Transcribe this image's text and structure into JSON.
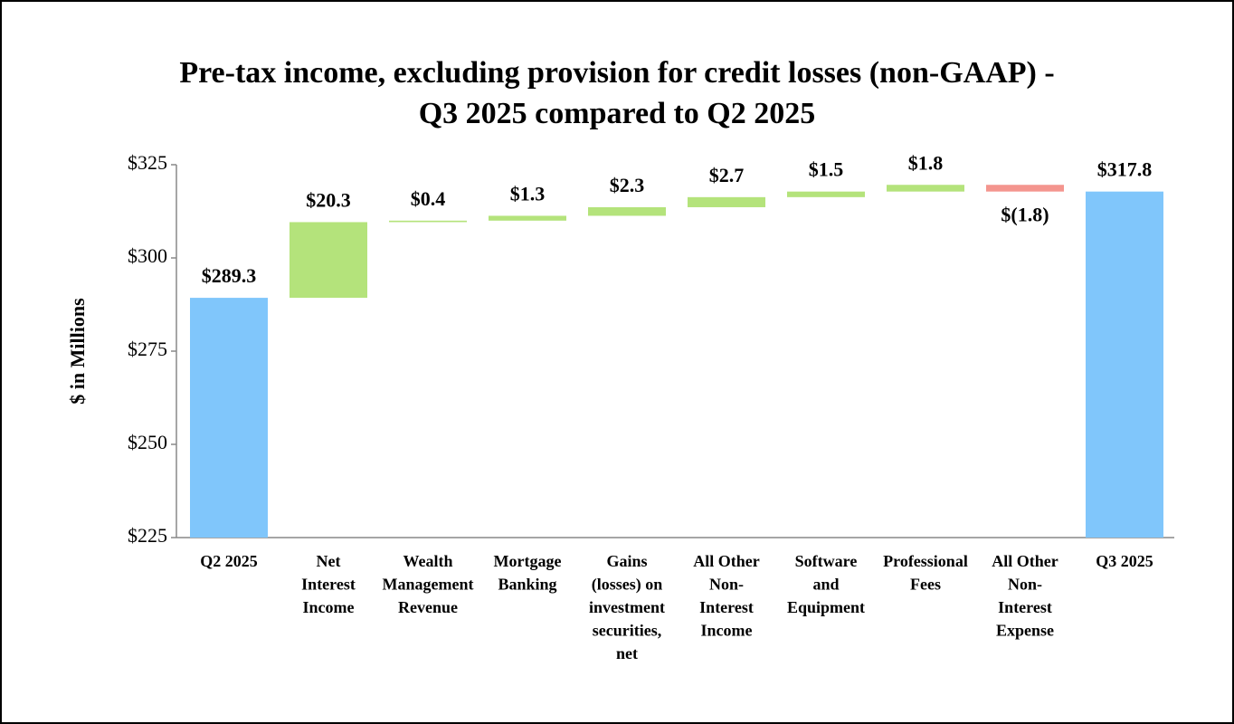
{
  "chart_data": {
    "type": "waterfall",
    "title": [
      "Pre-tax income, excluding provision for credit losses (non-GAAP) -",
      "Q3 2025 compared to Q2 2025"
    ],
    "y_label": "$ in Millions",
    "categories": [
      [
        "Q2 2025"
      ],
      [
        "Net",
        "Interest",
        "Income"
      ],
      [
        "Wealth",
        "Management",
        "Revenue"
      ],
      [
        "Mortgage",
        "Banking"
      ],
      [
        "Gains",
        "(losses) on",
        "investment",
        "securities,",
        "net"
      ],
      [
        "All Other",
        "Non-",
        "Interest",
        "Income"
      ],
      [
        "Software",
        "and",
        "Equipment"
      ],
      [
        "Professional",
        "Fees"
      ],
      [
        "All Other",
        "Non-",
        "Interest",
        "Expense"
      ],
      [
        "Q3 2025"
      ]
    ],
    "measure": [
      "total",
      "relative",
      "relative",
      "relative",
      "relative",
      "relative",
      "relative",
      "relative",
      "relative",
      "total"
    ],
    "values": [
      289.3,
      20.3,
      0.4,
      1.3,
      2.3,
      2.7,
      1.5,
      1.8,
      -1.8,
      317.8
    ],
    "value_labels": [
      "$289.3",
      "$20.3",
      "$0.4",
      "$1.3",
      "$2.3",
      "$2.7",
      "$1.5",
      "$1.8",
      "$(1.8)",
      "$317.8"
    ],
    "colors": {
      "total": "#80c6fb",
      "increase": "#b4e37b",
      "decrease": "#f4958e"
    },
    "ylim": [
      225,
      325
    ],
    "yticks": [
      {
        "value": 225,
        "label": "$225"
      },
      {
        "value": 250,
        "label": "$250"
      },
      {
        "value": 275,
        "label": "$275"
      },
      {
        "value": 300,
        "label": "$300"
      },
      {
        "value": 325,
        "label": "$325"
      }
    ],
    "grid": false
  }
}
